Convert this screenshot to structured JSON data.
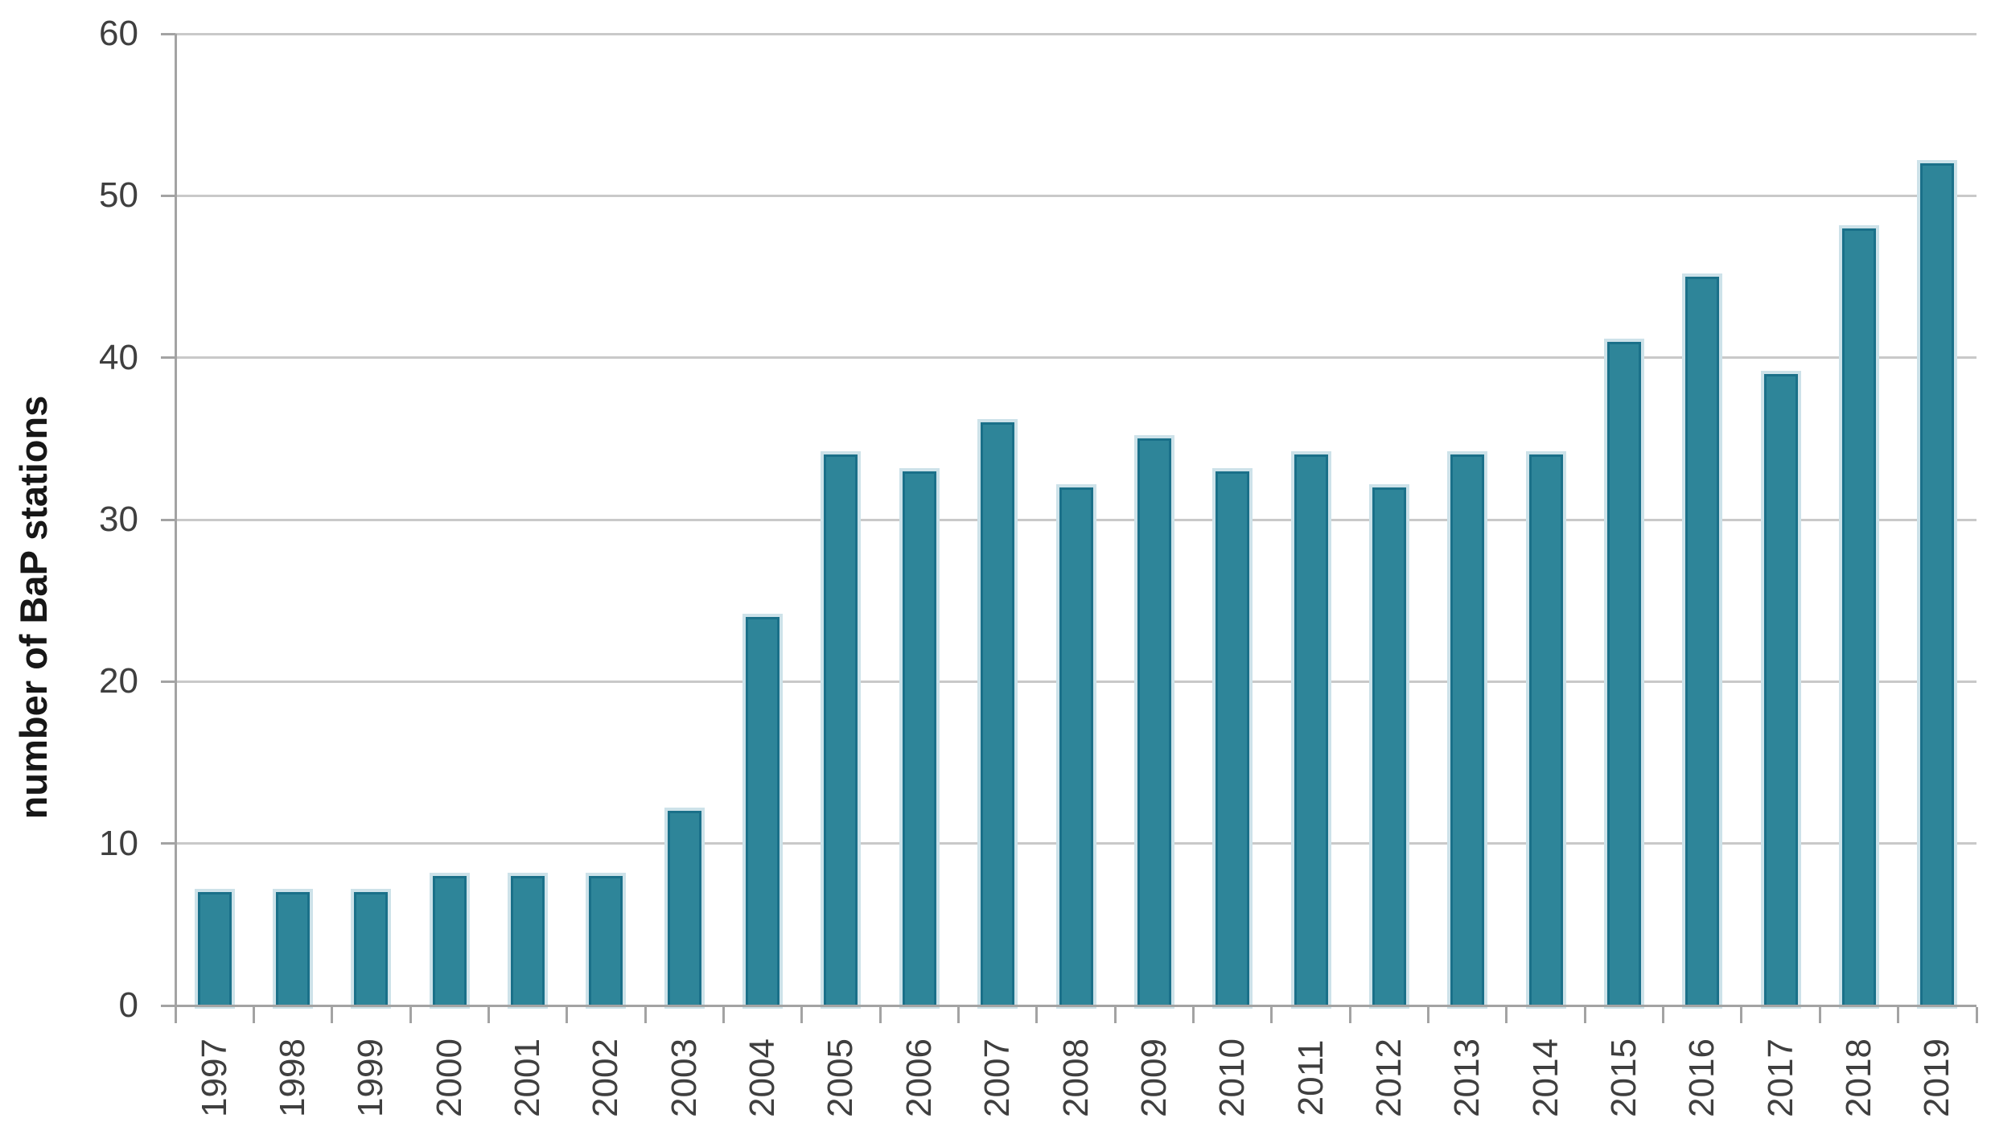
{
  "chart_data": {
    "type": "bar",
    "title": "",
    "xlabel": "",
    "ylabel": "number of BaP stations",
    "categories": [
      "1997",
      "1998",
      "1999",
      "2000",
      "2001",
      "2002",
      "2003",
      "2004",
      "2005",
      "2006",
      "2007",
      "2008",
      "2009",
      "2010",
      "2011",
      "2012",
      "2013",
      "2014",
      "2015",
      "2016",
      "2017",
      "2018",
      "2019"
    ],
    "values": [
      7,
      7,
      7,
      8,
      8,
      8,
      12,
      24,
      34,
      33,
      36,
      32,
      35,
      33,
      34,
      32,
      34,
      34,
      41,
      45,
      39,
      48,
      52
    ],
    "ylim": [
      0,
      60
    ],
    "ytick_step": 10,
    "ytick_labels": [
      "0",
      "10",
      "20",
      "30",
      "40",
      "50",
      "60"
    ],
    "grid": "horizontal",
    "legend": "none",
    "bar_fill_color": "#2e8599",
    "bar_border_color": "#1a7089",
    "bar_halo_color": "#cde2e9",
    "gridline_color": "#c9c9c9",
    "axis_line_color": "#a3a3a3",
    "tick_label_color": "#3f3f3f",
    "axis_title_color": "#171717"
  }
}
